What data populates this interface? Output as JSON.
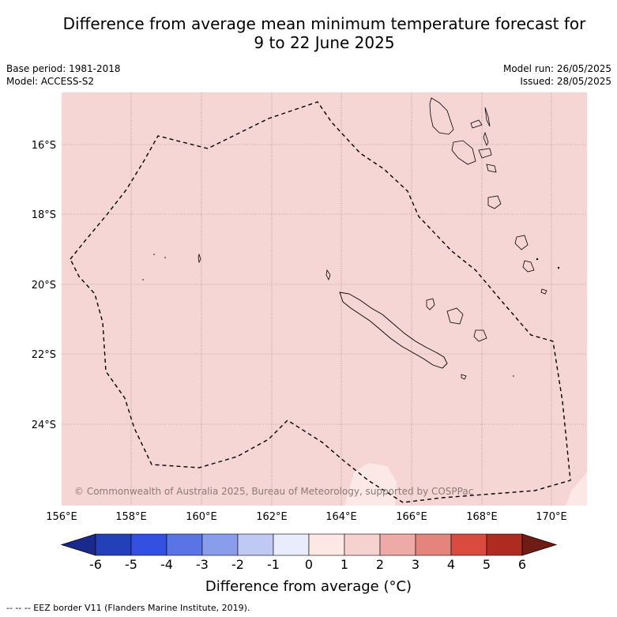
{
  "title_line1": "Difference from average mean minimum temperature forecast for",
  "title_line2": "9 to 22 June 2025",
  "meta_left": {
    "base_period": "Base period: 1981-2018",
    "model": "Model: ACCESS-S2"
  },
  "meta_right": {
    "model_run": "Model run: 26/05/2025",
    "issued": "Issued: 28/05/2025"
  },
  "map": {
    "lon_range": [
      156,
      171
    ],
    "lat_range": [
      -26.2,
      -14.8
    ],
    "lon_ticks": [
      "156°E",
      "158°E",
      "160°E",
      "162°E",
      "164°E",
      "166°E",
      "168°E",
      "170°E"
    ],
    "lat_ticks": [
      "16°S",
      "18°S",
      "20°S",
      "22°S",
      "24°S"
    ],
    "background_color": "#f5d6d4",
    "copyright": "© Commonwealth of Australia 2025, Bureau of Meteorology, supported by COSPPac"
  },
  "colorbar": {
    "title": "Difference from average (°C)",
    "tick_labels": [
      "-6",
      "-5",
      "-4",
      "-3",
      "-2",
      "-1",
      "0",
      "1",
      "2",
      "3",
      "4",
      "5",
      "6"
    ],
    "colors": [
      "#1a2a8c",
      "#2340b8",
      "#3350e0",
      "#5a74e6",
      "#8a9ded",
      "#c0c8f4",
      "#e8ecfb",
      "#fde8e6",
      "#f5d2cf",
      "#eeaaa6",
      "#e5837d",
      "#d94a3f",
      "#ae2b22",
      "#6e1c14"
    ]
  },
  "footer": "--  --  -- EEZ border V11 (Flanders Marine Institute, 2019)."
}
